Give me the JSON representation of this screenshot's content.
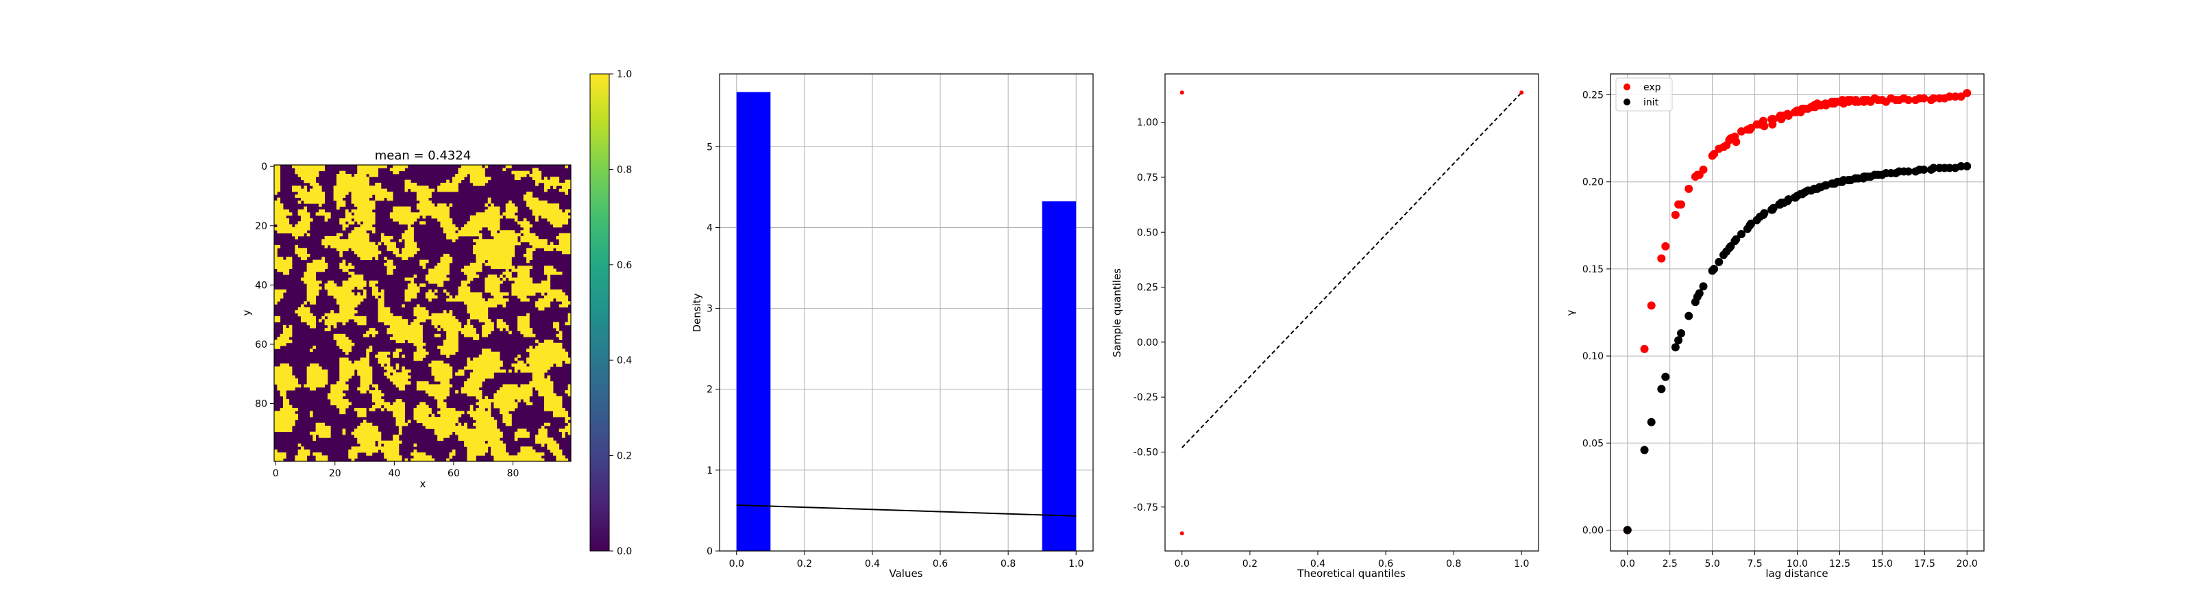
{
  "chart_data": [
    {
      "type": "heatmap",
      "title": "mean = 0.4324",
      "xlabel": "x",
      "ylabel": "y",
      "grid_size": [
        100,
        100
      ],
      "mean": 0.4324,
      "xticks": [
        "0",
        "20",
        "40",
        "60",
        "80"
      ],
      "yticks": [
        "0",
        "20",
        "40",
        "60",
        "80"
      ],
      "colormap": "viridis",
      "colors": {
        "low": "#440154",
        "high": "#fde725"
      },
      "colorbar": {
        "min": 0.0,
        "max": 1.0,
        "ticks": [
          "0.0",
          "0.2",
          "0.4",
          "0.6",
          "0.8",
          "1.0"
        ]
      }
    },
    {
      "type": "bar",
      "xlabel": "Values",
      "ylabel": "Density",
      "xlim": [
        -0.05,
        1.05
      ],
      "ylim": [
        0,
        5.9
      ],
      "grid": true,
      "bars": [
        {
          "x0": 0.0,
          "x1": 0.1,
          "value": 5.676
        },
        {
          "x0": 0.9,
          "x1": 1.0,
          "value": 4.324
        }
      ],
      "bar_color": "#0000ff",
      "line": {
        "x": [
          0.0,
          1.0
        ],
        "y": [
          0.5676,
          0.4324
        ],
        "color": "#000000"
      },
      "xticks": [
        "0.0",
        "0.2",
        "0.4",
        "0.6",
        "0.8",
        "1.0"
      ],
      "yticks": [
        "0",
        "1",
        "2",
        "3",
        "4",
        "5"
      ]
    },
    {
      "type": "scatter",
      "xlabel": "Theoretical quantiles",
      "ylabel": "Sample quantiles",
      "xlim": [
        -0.05,
        1.05
      ],
      "ylim": [
        -0.95,
        1.22
      ],
      "grid": false,
      "points": [
        {
          "x": 0.0,
          "y": 1.135
        },
        {
          "x": 0.0,
          "y": -0.87
        },
        {
          "x": 1.0,
          "y": 1.135
        }
      ],
      "point_color": "#ff0000",
      "reference_line": {
        "x": [
          0.0,
          1.0
        ],
        "y": [
          -0.48,
          1.135
        ],
        "color": "#000000",
        "dash": true
      },
      "xticks": [
        "0.0",
        "0.2",
        "0.4",
        "0.6",
        "0.8",
        "1.0"
      ],
      "yticks": [
        "-0.75",
        "-0.50",
        "-0.25",
        "0.00",
        "0.25",
        "0.50",
        "0.75",
        "1.00"
      ]
    },
    {
      "type": "scatter",
      "xlabel": "lag distance",
      "ylabel": "γ",
      "xlim": [
        -1.0,
        21.0
      ],
      "ylim": [
        -0.012,
        0.262
      ],
      "grid": true,
      "legend": "top-left",
      "xticks": [
        "0.0",
        "2.5",
        "5.0",
        "7.5",
        "10.0",
        "12.5",
        "15.0",
        "17.5",
        "20.0"
      ],
      "yticks": [
        "0.00",
        "0.05",
        "0.10",
        "0.15",
        "0.20",
        "0.25"
      ],
      "series": [
        {
          "name": "exp",
          "color": "#ff0000",
          "x": [
            0.0,
            1.0,
            1.41,
            2.0,
            2.24,
            2.83,
            3.0,
            3.16,
            3.61,
            4.0,
            4.12,
            4.24,
            4.47,
            5.0,
            5.1,
            5.39,
            5.66,
            5.83,
            6.0,
            6.08,
            6.32,
            6.4,
            6.71,
            7.07,
            7.21,
            7.28,
            7.62,
            7.81,
            8.0,
            8.06,
            8.49,
            8.54,
            8.6,
            8.94,
            9.0,
            9.06,
            9.22,
            9.43,
            9.49,
            9.85,
            9.9,
            10.0,
            10.2,
            10.3,
            10.44,
            10.63,
            10.82,
            11.0,
            11.05,
            11.18,
            11.31,
            11.4,
            11.66,
            11.7,
            12.04,
            12.08,
            12.17,
            12.21,
            12.37,
            12.53,
            12.65,
            12.73,
            13.0,
            13.04,
            13.15,
            13.42,
            13.45,
            13.6,
            13.89,
            13.93,
            14.0,
            14.14,
            14.32,
            14.56,
            14.76,
            15.0,
            15.23,
            15.52,
            15.81,
            16.0,
            16.28,
            16.55,
            16.97,
            17.2,
            17.46,
            17.89,
            18.03,
            18.38,
            18.68,
            18.97,
            19.31,
            19.65,
            20.0
          ],
          "y": [
            0.0,
            0.104,
            0.129,
            0.156,
            0.163,
            0.181,
            0.187,
            0.187,
            0.196,
            0.203,
            0.204,
            0.204,
            0.207,
            0.215,
            0.216,
            0.219,
            0.22,
            0.221,
            0.224,
            0.225,
            0.226,
            0.223,
            0.229,
            0.23,
            0.23,
            0.231,
            0.233,
            0.233,
            0.235,
            0.232,
            0.236,
            0.233,
            0.236,
            0.237,
            0.238,
            0.236,
            0.238,
            0.239,
            0.238,
            0.24,
            0.24,
            0.241,
            0.24,
            0.242,
            0.242,
            0.242,
            0.243,
            0.244,
            0.243,
            0.245,
            0.244,
            0.244,
            0.245,
            0.244,
            0.246,
            0.245,
            0.245,
            0.246,
            0.246,
            0.246,
            0.247,
            0.245,
            0.247,
            0.246,
            0.247,
            0.246,
            0.247,
            0.246,
            0.247,
            0.246,
            0.247,
            0.247,
            0.246,
            0.248,
            0.247,
            0.247,
            0.246,
            0.248,
            0.247,
            0.247,
            0.248,
            0.247,
            0.247,
            0.248,
            0.248,
            0.247,
            0.248,
            0.248,
            0.248,
            0.249,
            0.249,
            0.249,
            0.251
          ]
        },
        {
          "name": "init",
          "color": "#000000",
          "x": [
            0.0,
            1.0,
            1.41,
            2.0,
            2.24,
            2.83,
            3.0,
            3.16,
            3.61,
            4.0,
            4.12,
            4.24,
            4.47,
            5.0,
            5.1,
            5.39,
            5.66,
            5.83,
            6.0,
            6.08,
            6.32,
            6.4,
            6.71,
            7.07,
            7.21,
            7.28,
            7.62,
            7.81,
            8.0,
            8.06,
            8.49,
            8.54,
            8.6,
            8.94,
            9.0,
            9.06,
            9.22,
            9.43,
            9.49,
            9.85,
            9.9,
            10.0,
            10.2,
            10.3,
            10.44,
            10.63,
            10.82,
            11.0,
            11.05,
            11.18,
            11.31,
            11.4,
            11.66,
            11.7,
            12.04,
            12.08,
            12.17,
            12.21,
            12.37,
            12.53,
            12.65,
            12.73,
            13.0,
            13.04,
            13.15,
            13.42,
            13.45,
            13.6,
            13.89,
            13.93,
            14.0,
            14.14,
            14.32,
            14.56,
            14.76,
            15.0,
            15.23,
            15.52,
            15.81,
            16.0,
            16.28,
            16.55,
            16.97,
            17.2,
            17.46,
            17.89,
            18.03,
            18.38,
            18.68,
            18.97,
            19.31,
            19.65,
            20.0
          ],
          "y": [
            0.0,
            0.046,
            0.062,
            0.081,
            0.088,
            0.105,
            0.109,
            0.113,
            0.123,
            0.131,
            0.134,
            0.136,
            0.14,
            0.149,
            0.15,
            0.154,
            0.158,
            0.16,
            0.162,
            0.163,
            0.166,
            0.167,
            0.17,
            0.173,
            0.175,
            0.176,
            0.178,
            0.18,
            0.181,
            0.182,
            0.184,
            0.184,
            0.185,
            0.187,
            0.187,
            0.188,
            0.188,
            0.189,
            0.19,
            0.191,
            0.191,
            0.192,
            0.193,
            0.193,
            0.194,
            0.195,
            0.195,
            0.196,
            0.196,
            0.196,
            0.197,
            0.197,
            0.198,
            0.198,
            0.199,
            0.199,
            0.199,
            0.199,
            0.2,
            0.2,
            0.2,
            0.201,
            0.201,
            0.201,
            0.201,
            0.202,
            0.202,
            0.202,
            0.202,
            0.203,
            0.203,
            0.203,
            0.203,
            0.204,
            0.204,
            0.204,
            0.205,
            0.205,
            0.205,
            0.206,
            0.206,
            0.206,
            0.206,
            0.207,
            0.207,
            0.207,
            0.208,
            0.208,
            0.208,
            0.208,
            0.208,
            0.209,
            0.209
          ]
        }
      ]
    }
  ]
}
